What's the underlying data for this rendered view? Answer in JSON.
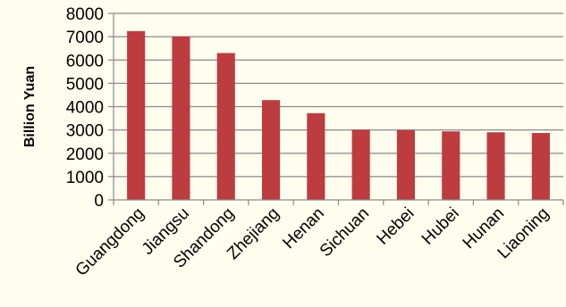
{
  "chart_data": {
    "type": "bar",
    "title": "",
    "xlabel": "",
    "ylabel": "Billion Yuan",
    "categories": [
      "Guangdong",
      "Jiangsu",
      "Shandong",
      "Zhejiang",
      "Henan",
      "Sichuan",
      "Hebei",
      "Hubei",
      "Hunan",
      "Liaoning"
    ],
    "values": [
      7240,
      7010,
      6300,
      4280,
      3720,
      3010,
      2990,
      2940,
      2900,
      2870
    ],
    "ylim": [
      0,
      8000
    ],
    "yticks": [
      "0",
      "1000",
      "2000",
      "3000",
      "4000",
      "5000",
      "6000",
      "7000",
      "8000"
    ],
    "grid": true,
    "legend": "none",
    "colors": {
      "bar": "#bc3c40",
      "grid": "#8a8a8a",
      "axis": "#8a8a8a",
      "background": "#fefdee"
    }
  }
}
